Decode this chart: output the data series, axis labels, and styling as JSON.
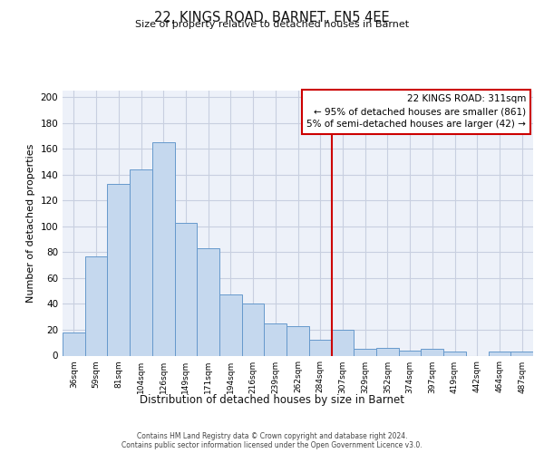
{
  "title": "22, KINGS ROAD, BARNET, EN5 4EE",
  "subtitle": "Size of property relative to detached houses in Barnet",
  "xlabel": "Distribution of detached houses by size in Barnet",
  "ylabel": "Number of detached properties",
  "bar_color": "#c5d8ee",
  "bar_edge_color": "#6699cc",
  "background_color": "#edf1f9",
  "grid_color": "#c8cfe0",
  "categories": [
    "36sqm",
    "59sqm",
    "81sqm",
    "104sqm",
    "126sqm",
    "149sqm",
    "171sqm",
    "194sqm",
    "216sqm",
    "239sqm",
    "262sqm",
    "284sqm",
    "307sqm",
    "329sqm",
    "352sqm",
    "374sqm",
    "397sqm",
    "419sqm",
    "442sqm",
    "464sqm",
    "487sqm"
  ],
  "values": [
    18,
    77,
    133,
    144,
    165,
    103,
    83,
    47,
    40,
    25,
    23,
    12,
    20,
    5,
    6,
    4,
    5,
    3,
    0,
    3,
    3
  ],
  "vline_index": 12,
  "vline_color": "#cc0000",
  "annotation_title": "22 KINGS ROAD: 311sqm",
  "annotation_line1": "← 95% of detached houses are smaller (861)",
  "annotation_line2": "5% of semi-detached houses are larger (42) →",
  "annotation_box_color": "#ffffff",
  "annotation_border_color": "#cc0000",
  "ylim": [
    0,
    205
  ],
  "yticks": [
    0,
    20,
    40,
    60,
    80,
    100,
    120,
    140,
    160,
    180,
    200
  ],
  "footer1": "Contains HM Land Registry data © Crown copyright and database right 2024.",
  "footer2": "Contains public sector information licensed under the Open Government Licence v3.0."
}
